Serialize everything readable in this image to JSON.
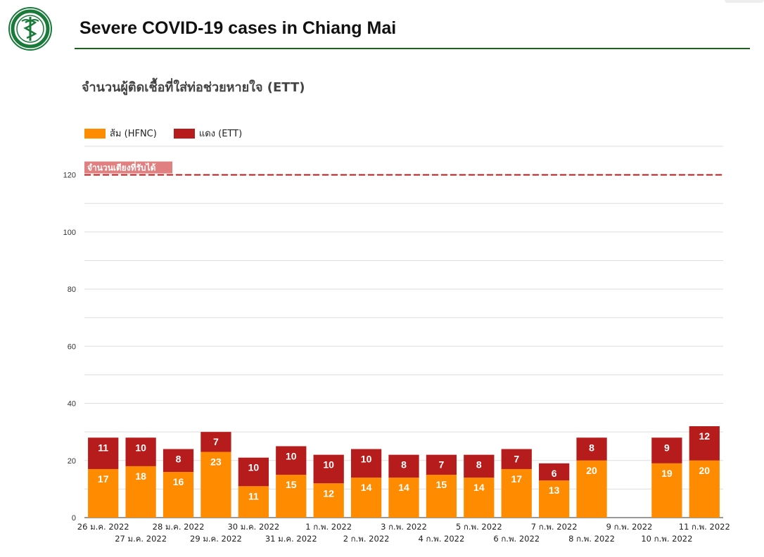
{
  "page": {
    "title": "Severe COVID-19 cases in Chiang Mai"
  },
  "colors": {
    "orange": "#ff8c00",
    "red": "#b71c1c",
    "capacity_line": "#b71c1c",
    "capacity_label_bg": "#e08080",
    "grid": "#dddddd",
    "header_rule": "#1e5e1e",
    "logo": "#1a7a3a"
  },
  "icons": {
    "logo": "department-health-seal-icon"
  },
  "chart_data": {
    "type": "bar",
    "stacked": true,
    "title": "จำนวนผู้ติดเชื้อที่ใส่ท่อช่วยหายใจ (ETT)",
    "categories": [
      "26 ม.ค. 2022",
      "27 ม.ค. 2022",
      "28 ม.ค. 2022",
      "29 ม.ค. 2022",
      "30 ม.ค. 2022",
      "31 ม.ค. 2022",
      "1 ก.พ. 2022",
      "2 ก.พ. 2022",
      "3 ก.พ. 2022",
      "4 ก.พ. 2022",
      "5 ก.พ. 2022",
      "6 ก.พ. 2022",
      "7 ก.พ. 2022",
      "8 ก.พ. 2022",
      "9 ก.พ. 2022",
      "10 ก.พ. 2022",
      "11 ก.พ. 2022"
    ],
    "series": [
      {
        "name": "ส้ม (HFNC)",
        "color": "#ff8c00",
        "values": [
          17,
          18,
          16,
          23,
          11,
          15,
          12,
          14,
          14,
          15,
          14,
          17,
          13,
          20,
          null,
          19,
          20
        ]
      },
      {
        "name": "แดง (ETT)",
        "color": "#b71c1c",
        "values": [
          11,
          10,
          8,
          7,
          10,
          10,
          10,
          10,
          8,
          7,
          8,
          7,
          6,
          8,
          null,
          9,
          12
        ]
      }
    ],
    "ylim": [
      0,
      130
    ],
    "yticks": [
      0,
      20,
      40,
      60,
      80,
      100,
      120
    ],
    "reference_line": {
      "value": 120,
      "label": "จำนวนเตียงที่รับได้",
      "style": "dashed"
    },
    "grid": true,
    "legend_position": "top-left"
  }
}
